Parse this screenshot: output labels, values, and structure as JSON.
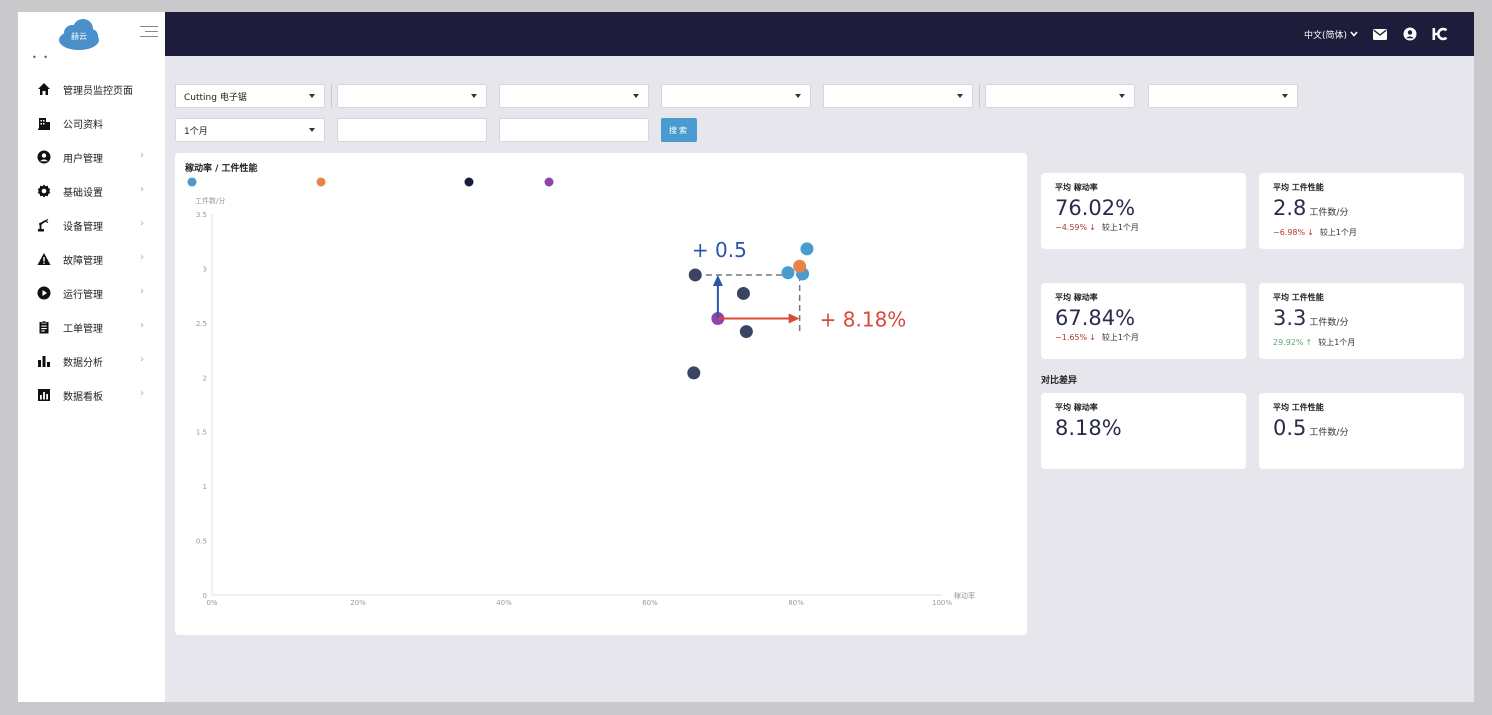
{
  "app": {
    "logo_text": "赫云",
    "dots": "• •"
  },
  "topbar": {
    "language": "中文(简体)"
  },
  "sidebar": {
    "items": [
      {
        "label": "管理员监控页面",
        "icon": "home-icon",
        "has_chevron": false
      },
      {
        "label": "公司资料",
        "icon": "building-icon",
        "has_chevron": false
      },
      {
        "label": "用户管理",
        "icon": "user-circle-icon",
        "has_chevron": true
      },
      {
        "label": "基础设置",
        "icon": "cog-icon",
        "has_chevron": true
      },
      {
        "label": "设备管理",
        "icon": "robot-arm-icon",
        "has_chevron": true
      },
      {
        "label": "故障管理",
        "icon": "warning-icon",
        "has_chevron": true
      },
      {
        "label": "运行管理",
        "icon": "play-icon",
        "has_chevron": true
      },
      {
        "label": "工单管理",
        "icon": "clipboard-icon",
        "has_chevron": true
      },
      {
        "label": "数据分析",
        "icon": "bar-chart-icon",
        "has_chevron": true
      },
      {
        "label": "数据看板",
        "icon": "dashboard-icon",
        "has_chevron": true
      }
    ],
    "chevron": "›"
  },
  "filters": {
    "row1": [
      "Cutting 电子锯",
      "",
      "",
      "",
      "",
      "",
      ""
    ],
    "period": "1个月",
    "date_from": "",
    "date_to": "",
    "search_label": "搜索"
  },
  "chart": {
    "title": "稼动率 / 工件性能",
    "annotation_y": "+ 0.5",
    "annotation_x": "+ 8.18%",
    "series_colors": [
      "#4a9bd0",
      "#e8844a",
      "#1a1d3d",
      "#8e44ad"
    ],
    "annotation_y_color": "#2a55a8",
    "annotation_x_color": "#d84a3a"
  },
  "chart_data": {
    "type": "scatter",
    "title": "稼动率 / 工件性能",
    "xlabel": "稼动率",
    "ylabel": "工件数/分",
    "xlim": [
      0,
      100
    ],
    "ylim": [
      0,
      3.5
    ],
    "x_ticks": [
      "0%",
      "20%",
      "40%",
      "60%",
      "80%",
      "100%"
    ],
    "y_ticks": [
      "0",
      "0.5",
      "1",
      "1.5",
      "2",
      "2.5",
      "3",
      "3.5"
    ],
    "legend_placement": "top-left",
    "series": [
      {
        "color": "#4a9bd0",
        "points": [
          [
            81.5,
            3.18
          ],
          [
            78.9,
            2.96
          ],
          [
            80.9,
            2.95
          ]
        ]
      },
      {
        "color": "#e8844a",
        "points": [
          [
            80.5,
            3.02
          ]
        ]
      },
      {
        "color": "#3b4460",
        "points": [
          [
            66.2,
            2.94
          ],
          [
            72.8,
            2.77
          ],
          [
            73.2,
            2.42
          ],
          [
            66.0,
            2.04
          ]
        ]
      },
      {
        "color": "#8e44ad",
        "points": [
          [
            69.3,
            2.54
          ]
        ]
      }
    ],
    "arrow_from": [
      69.3,
      2.54
    ],
    "arrow_to_x": [
      80.5,
      2.54
    ],
    "arrow_to_y": [
      69.3,
      2.94
    ]
  },
  "stats": {
    "row1": [
      {
        "label": "平均 稼动率",
        "value": "76.02%",
        "unit": "",
        "change": "−4.59%",
        "direction": "down",
        "compare": "较上1个月"
      },
      {
        "label": "平均 工件性能",
        "value": "2.8",
        "unit": "工件数/分",
        "change": "−6.98%",
        "direction": "down",
        "compare": "较上1个月"
      }
    ],
    "row2": [
      {
        "label": "平均 稼动率",
        "value": "67.84%",
        "unit": "",
        "change": "−1.65%",
        "direction": "down",
        "compare": "较上1个月"
      },
      {
        "label": "平均 工件性能",
        "value": "3.3",
        "unit": "工件数/分",
        "change": "29.92%",
        "direction": "up",
        "compare": "较上1个月"
      }
    ],
    "diff_label": "对比差异",
    "diff": [
      {
        "label": "平均 稼动率",
        "value": "8.18%",
        "unit": ""
      },
      {
        "label": "平均 工件性能",
        "value": "0.5",
        "unit": "工件数/分"
      }
    ],
    "arrow_down": "↓",
    "arrow_up": "↑"
  }
}
